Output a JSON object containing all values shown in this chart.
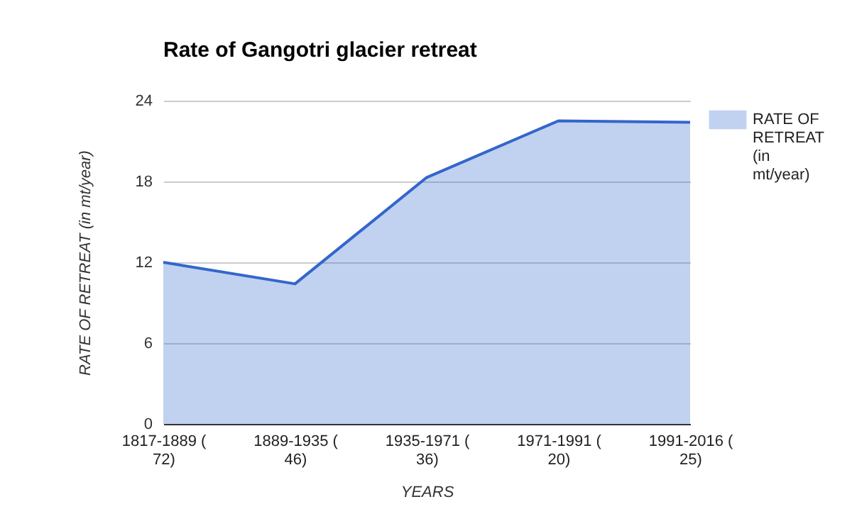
{
  "chart_data": {
    "type": "area",
    "title": "Rate of Gangotri glacier retreat",
    "xlabel": "YEARS",
    "ylabel": "RATE OF RETREAT (in mt/year)",
    "categories": [
      "1817-1889 (72)",
      "1889-1935 (46)",
      "1935-1971 (36)",
      "1971-1991 (20)",
      "1991-2016 (25)"
    ],
    "series": [
      {
        "name": "RATE OF RETREAT (in mt/year)",
        "color": "#3366cc",
        "values": [
          12,
          10.4,
          18.3,
          22.5,
          22.4
        ]
      }
    ],
    "ylim": [
      0,
      24
    ],
    "yticks": [
      0,
      6,
      12,
      18,
      24
    ],
    "grid": "y",
    "legend": "top right"
  }
}
